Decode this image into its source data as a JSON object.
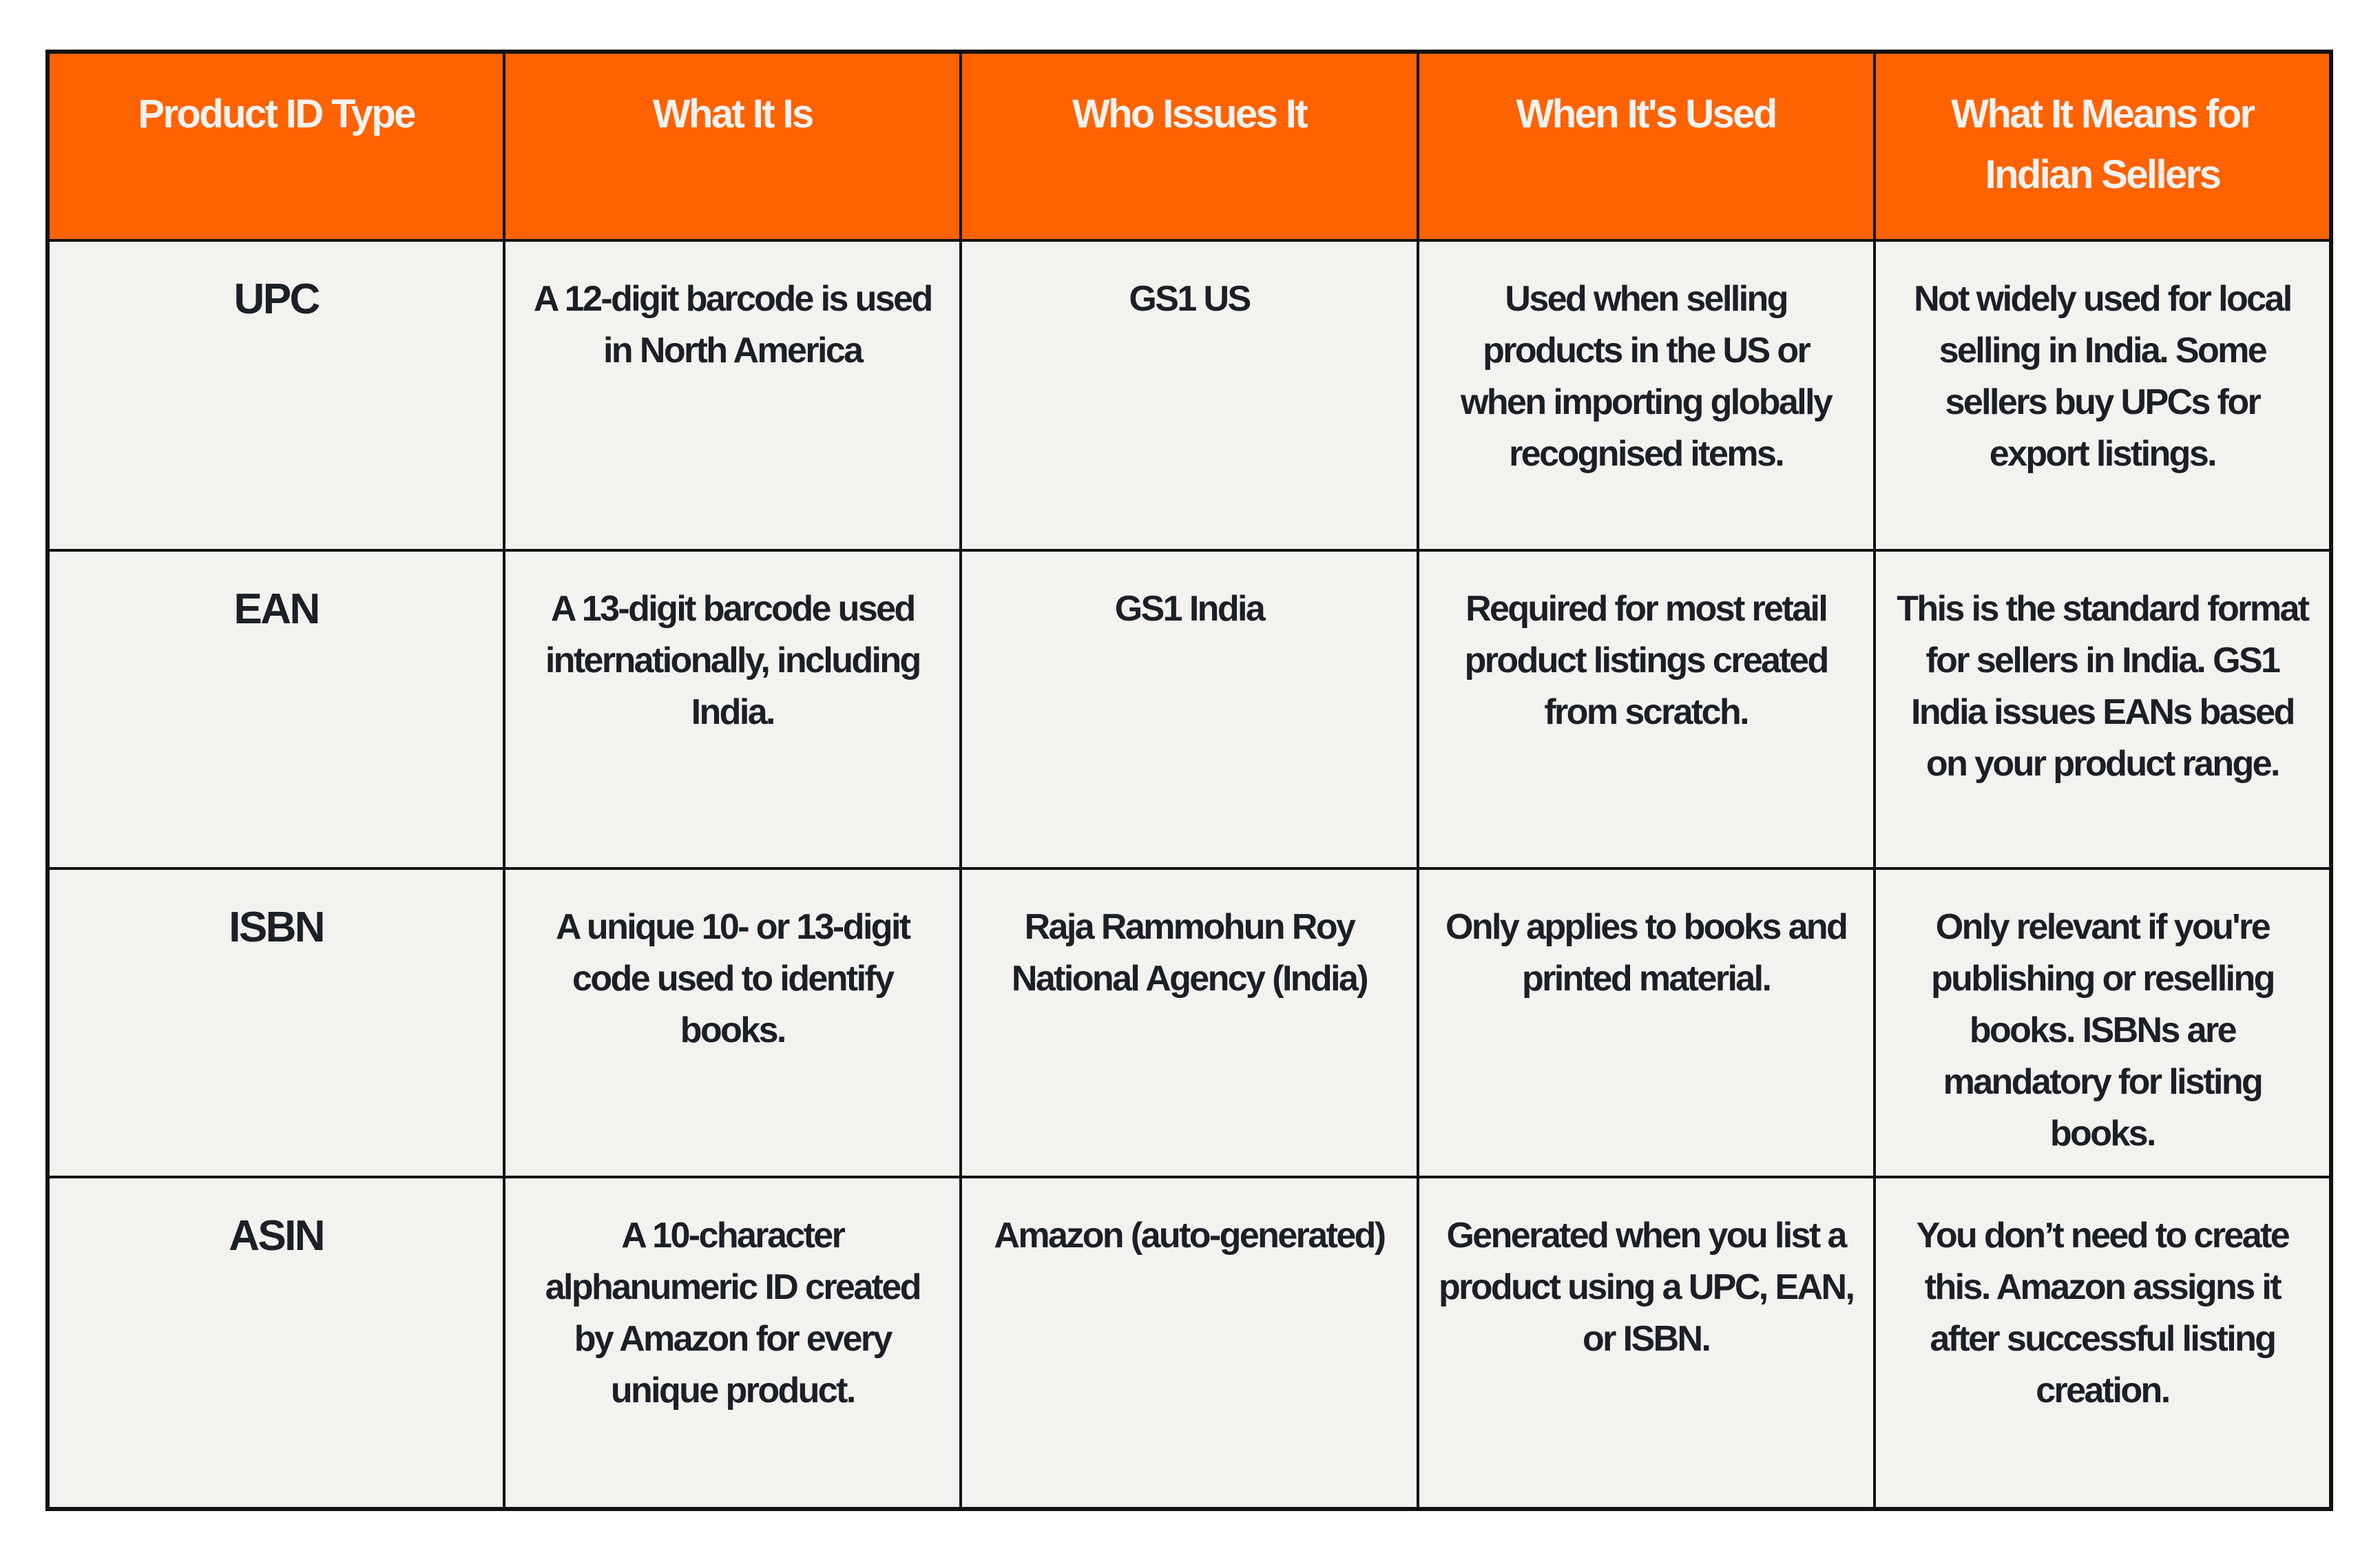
{
  "colors": {
    "header_bg": "#ff6200",
    "header_text": "#f4f2ef",
    "cell_bg": "#f4f2ef",
    "cell_text": "#1b1f27",
    "border": "#111111"
  },
  "table": {
    "headers": [
      "Product ID Type",
      "What It Is",
      "Who Issues It",
      "When It's Used",
      "What It Means for Indian Sellers"
    ],
    "rows": [
      [
        "UPC",
        "A 12-digit barcode is used in North America",
        "GS1 US",
        "Used when selling products in the US or when importing globally recognised items.",
        "Not widely used for local selling in India. Some sellers buy UPCs for export listings."
      ],
      [
        "EAN",
        "A 13-digit barcode used internationally, including India.",
        "GS1 India",
        "Required for most retail product listings created from scratch.",
        "This is the standard format for sellers in India. GS1 India issues EANs based on your product range."
      ],
      [
        "ISBN",
        "A unique 10- or 13-digit code used to identify books.",
        "Raja Rammohun Roy National Agency (India)",
        "Only applies to books and printed material.",
        "Only relevant if you're publishing or reselling books. ISBNs are mandatory for listing books."
      ],
      [
        "ASIN",
        "A 10-character alphanumeric ID created by Amazon for every unique product.",
        "Amazon (auto-generated)",
        "Generated when you list a product using a UPC, EAN, or ISBN.",
        "You don’t need to create this. Amazon assigns it after successful listing creation."
      ]
    ]
  }
}
